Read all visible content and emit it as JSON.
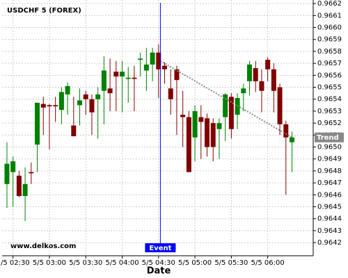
{
  "chart_data": {
    "type": "candlestick",
    "title": "USDCHF 5 (FOREX)",
    "watermark": "www.delkos.com",
    "x_label": "Date",
    "x": [
      0,
      1,
      2,
      3,
      4,
      5,
      6,
      7,
      8,
      9,
      10,
      11,
      12,
      13,
      14,
      15,
      16,
      17,
      18,
      19,
      20,
      21,
      22,
      23,
      24,
      25,
      26,
      27,
      28,
      29,
      30,
      31,
      32,
      33,
      34,
      35,
      36,
      37,
      38,
      39,
      40,
      41,
      42,
      43,
      44,
      45,
      46,
      47
    ],
    "open": [
      0.96469,
      0.96479,
      0.96476,
      0.96459,
      0.96479,
      0.96502,
      0.96536,
      0.96535,
      0.96535,
      0.96531,
      0.96544,
      0.96518,
      0.96535,
      0.96544,
      0.9654,
      0.9654,
      0.96547,
      0.96549,
      0.96563,
      0.96559,
      0.96557,
      0.96558,
      0.96573,
      0.96564,
      0.96569,
      0.96579,
      0.96568,
      0.96549,
      0.96565,
      0.96527,
      0.96525,
      0.96508,
      0.96525,
      0.96524,
      0.9652,
      0.96515,
      0.96525,
      0.96542,
      0.96527,
      0.96545,
      0.96555,
      0.96566,
      0.96555,
      0.96573,
      0.96565,
      0.9655,
      0.96519,
      0.96504
    ],
    "high": [
      0.96504,
      0.96492,
      0.9648,
      0.96483,
      0.96487,
      0.96537,
      0.96542,
      0.96536,
      0.96542,
      0.9655,
      0.96554,
      0.96542,
      0.96549,
      0.96547,
      0.96544,
      0.9655,
      0.96576,
      0.96574,
      0.96572,
      0.96572,
      0.96567,
      0.96568,
      0.96579,
      0.96583,
      0.96583,
      0.96586,
      0.96571,
      0.96565,
      0.96568,
      0.96547,
      0.9653,
      0.96535,
      0.96535,
      0.96528,
      0.96524,
      0.96524,
      0.96545,
      0.96545,
      0.96545,
      0.96553,
      0.96572,
      0.96572,
      0.96565,
      0.96575,
      0.9657,
      0.96553,
      0.96522,
      0.96513
    ],
    "low": [
      0.96449,
      0.9645,
      0.96458,
      0.96438,
      0.96469,
      0.96479,
      0.9651,
      0.96498,
      0.96521,
      0.96519,
      0.96527,
      0.96509,
      0.96518,
      0.96527,
      0.9651,
      0.96507,
      0.96519,
      0.9653,
      0.9653,
      0.96529,
      0.96537,
      0.9653,
      0.96559,
      0.96547,
      0.96555,
      0.96541,
      0.96553,
      0.96527,
      0.9651,
      0.965,
      0.96479,
      0.96488,
      0.9649,
      0.96492,
      0.96488,
      0.9649,
      0.96505,
      0.96507,
      0.96515,
      0.9653,
      0.96543,
      0.96546,
      0.96529,
      0.96555,
      0.96529,
      0.9651,
      0.9646,
      0.96479
    ],
    "close": [
      0.96486,
      0.96488,
      0.96459,
      0.96469,
      0.96478,
      0.96537,
      0.96533,
      0.96534,
      0.96534,
      0.96546,
      0.96551,
      0.96509,
      0.96539,
      0.9654,
      0.96529,
      0.96544,
      0.96564,
      0.96545,
      0.96559,
      0.96563,
      0.96558,
      0.96557,
      0.96574,
      0.96569,
      0.96579,
      0.96565,
      0.96565,
      0.9654,
      0.96556,
      0.96525,
      0.96479,
      0.9653,
      0.96521,
      0.965,
      0.965,
      0.9652,
      0.96544,
      0.96515,
      0.96541,
      0.96549,
      0.96569,
      0.96555,
      0.96547,
      0.96565,
      0.96547,
      0.96519,
      0.96508,
      0.96508
    ],
    "up_color": "#008000",
    "down_color": "#800000",
    "xlim": [
      -0.8,
      50.5
    ],
    "ylim": [
      0.96409,
      0.96623
    ],
    "xticks": [
      {
        "value": 1,
        "label": "5/5 02:30"
      },
      {
        "value": 7,
        "label": "5/5 03:00"
      },
      {
        "value": 13,
        "label": "5/5 03:30"
      },
      {
        "value": 19,
        "label": "5/5 04:00"
      },
      {
        "value": 25,
        "label": "5/5 04:30"
      },
      {
        "value": 31,
        "label": "5/5 05:00"
      },
      {
        "value": 37,
        "label": "5/5 05:30"
      },
      {
        "value": 43,
        "label": "5/5 06:00"
      }
    ],
    "yticks": [
      0.9642,
      0.9643,
      0.9644,
      0.9645,
      0.9646,
      0.9647,
      0.9648,
      0.9649,
      {
        "value": 0.965,
        "label": "0.9650"
      },
      0.9651,
      0.9652,
      0.9653,
      0.9654,
      0.9655,
      0.9656,
      0.9657,
      0.9658,
      0.9659,
      {
        "value": 0.966,
        "label": "0.9660"
      },
      0.9661,
      0.9662
    ],
    "grid": true,
    "event": {
      "label": "Event",
      "x": 25.3,
      "color": "#0000ff"
    },
    "trend": {
      "label": "Trend",
      "x": [
        25.3,
        47
      ],
      "y": [
        0.96572,
        0.96508
      ],
      "color": "#888888"
    }
  }
}
